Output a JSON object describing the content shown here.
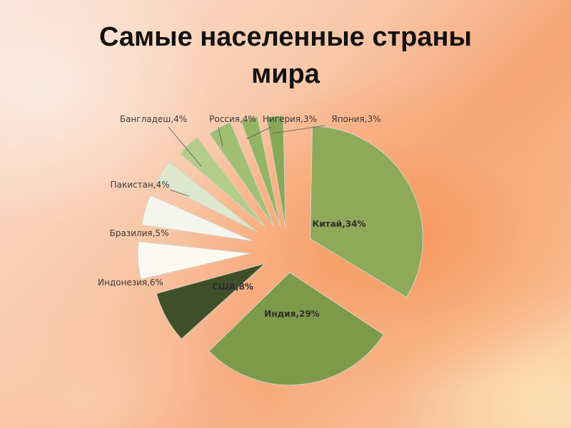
{
  "title_line1": "Самые населенные страны",
  "title_line2": "мира",
  "chart_data": {
    "type": "pie",
    "categories": [
      "Китай",
      "Индия",
      "США",
      "Индонезия",
      "Бразилия",
      "Пакистан",
      "Бангладеш",
      "Россия",
      "Нигерия",
      "Япония"
    ],
    "values": [
      34,
      29,
      8,
      6,
      5,
      4,
      4,
      4,
      3,
      3
    ],
    "labels": [
      "Китай,34%",
      "Индия,29%",
      "США,8%",
      "Индонезия,6%",
      "Бразилия,5%",
      "Пакистан,4%",
      "Бангладеш,4%",
      "Россия,4%",
      "Нигерия,3%",
      "Япония,3%"
    ],
    "colors": [
      "#8ea95a",
      "#7d9a4a",
      "#3f5029",
      "#fafaf3",
      "#f4f6ee",
      "#dde8cc",
      "#b3cc8a",
      "#a1bf73",
      "#93b462",
      "#87a957"
    ],
    "exploded": true,
    "legend": "none"
  }
}
